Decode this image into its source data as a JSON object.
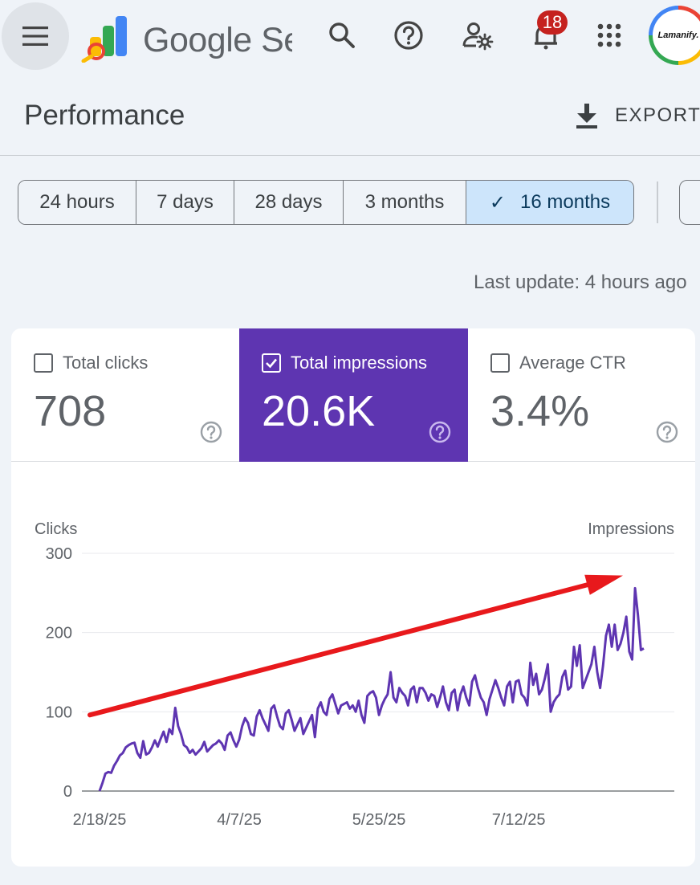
{
  "app": {
    "brand_name": "Google Search Console"
  },
  "header": {
    "notification_count": "18",
    "avatar_text": "Lamanify."
  },
  "page": {
    "title": "Performance",
    "export_label": "EXPORT"
  },
  "date_ranges": [
    "24 hours",
    "7 days",
    "28 days",
    "3 months",
    "16 months"
  ],
  "selected_range": "16 months",
  "last_update": "Last update: 4 hours ago",
  "metrics": [
    {
      "label": "Total clicks",
      "value": "708",
      "checked": false
    },
    {
      "label": "Total impressions",
      "value": "20.6K",
      "checked": true
    },
    {
      "label": "Average CTR",
      "value": "3.4%",
      "checked": false
    }
  ],
  "colors": {
    "accent_purple": "#5e35b1",
    "line": "#5e35b1",
    "arrow": "#e8191c",
    "chip_active": "#cde5fb"
  },
  "chart_data": {
    "type": "line",
    "left_axis_label": "Clicks",
    "right_axis_label": "Impressions",
    "y_ticks": [
      0,
      100,
      200,
      300
    ],
    "ylim": [
      0,
      300
    ],
    "x_tick_labels": [
      "2/18/25",
      "4/7/25",
      "5/25/25",
      "7/12/25"
    ],
    "x_tick_index": [
      0,
      48,
      96,
      144
    ],
    "grid": true,
    "series": [
      {
        "name": "Total impressions",
        "values": [
          0,
          10,
          22,
          24,
          23,
          32,
          38,
          45,
          48,
          55,
          58,
          60,
          61,
          48,
          42,
          63,
          46,
          48,
          55,
          64,
          56,
          66,
          75,
          62,
          78,
          72,
          105,
          82,
          72,
          58,
          55,
          48,
          52,
          46,
          50,
          54,
          62,
          50,
          54,
          58,
          60,
          64,
          60,
          52,
          70,
          74,
          64,
          56,
          65,
          82,
          92,
          86,
          72,
          70,
          94,
          102,
          92,
          84,
          76,
          104,
          108,
          94,
          82,
          78,
          98,
          102,
          90,
          76,
          84,
          92,
          72,
          80,
          88,
          96,
          68,
          104,
          112,
          100,
          96,
          116,
          122,
          110,
          98,
          108,
          110,
          112,
          104,
          108,
          100,
          114,
          96,
          86,
          120,
          124,
          126,
          118,
          96,
          108,
          116,
          122,
          150,
          118,
          112,
          130,
          124,
          120,
          108,
          128,
          132,
          112,
          130,
          130,
          124,
          114,
          122,
          120,
          106,
          118,
          132,
          112,
          102,
          124,
          128,
          102,
          122,
          132,
          118,
          108,
          138,
          146,
          130,
          118,
          112,
          96,
          116,
          128,
          140,
          130,
          118,
          108,
          132,
          138,
          112,
          138,
          140,
          122,
          118,
          108,
          162,
          134,
          148,
          122,
          128,
          142,
          160,
          100,
          112,
          118,
          122,
          144,
          152,
          128,
          132,
          182,
          158,
          184,
          130,
          140,
          150,
          160,
          182,
          150,
          130,
          158,
          196,
          210,
          182,
          210,
          178,
          186,
          200,
          220,
          176,
          166,
          256,
          222,
          178,
          180
        ]
      }
    ],
    "annotation": "arrow"
  }
}
